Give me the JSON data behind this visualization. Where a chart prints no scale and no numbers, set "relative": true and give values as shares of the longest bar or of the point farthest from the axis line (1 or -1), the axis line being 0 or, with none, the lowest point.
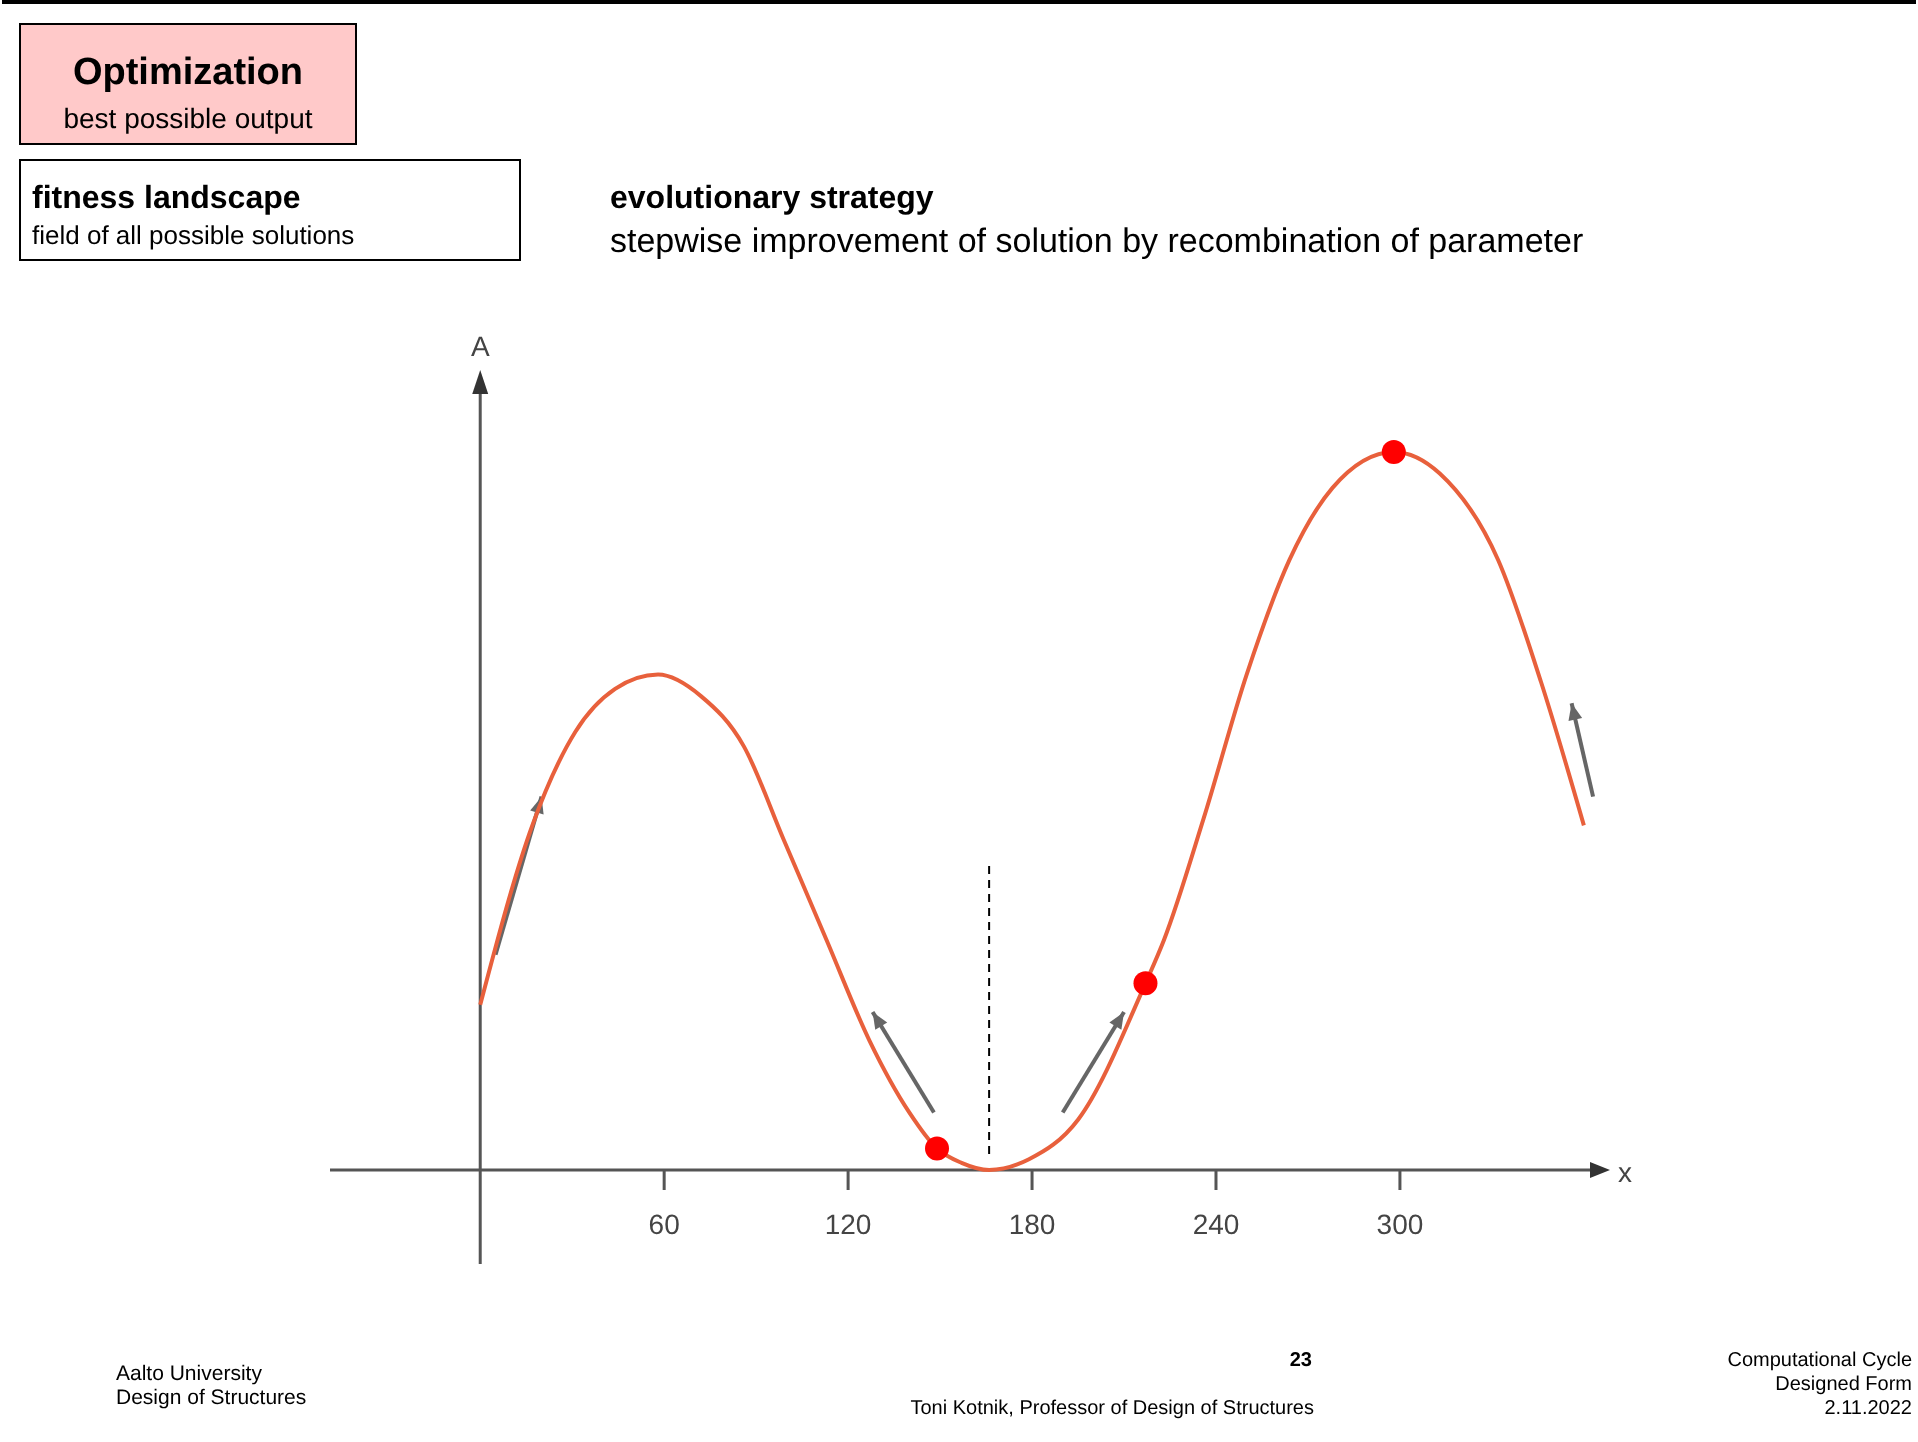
{
  "chart_data": {
    "type": "line",
    "title": "Optimization",
    "subtitle": "best possible output",
    "xlabel": "x",
    "ylabel": "A",
    "relative": true,
    "xlim": [
      -49,
      362
    ],
    "xticks": [
      60,
      120,
      180,
      240,
      300
    ],
    "marker": "none",
    "line_style": "solid",
    "annotations": [
      "fitness landscape",
      "field of all possible solutions",
      "evolutionary strategy",
      "stepwise improvement of solution by recombination of parameter",
      "Aalto University",
      "Design of Structures",
      "23",
      "Toni Kotnik, Professor of Design of Structures",
      "Computational Cycle",
      "Designed Form",
      "2.11.2022"
    ],
    "ref_lines": [
      {
        "axis": "x",
        "value": 166,
        "color": "#000000",
        "line_style": "dashed"
      }
    ],
    "series": [
      {
        "color": "#e8603c",
        "x": [
          0,
          17,
          31,
          44,
          58,
          72,
          86,
          99,
          113,
          127,
          140,
          149,
          157,
          166,
          179,
          195,
          217,
          223,
          236,
          250,
          264,
          278,
          298,
          313,
          332,
          346,
          360
        ],
        "values": [
          0.23,
          0.48,
          0.61,
          0.67,
          0.69,
          0.66,
          0.59,
          0.46,
          0.32,
          0.18,
          0.08,
          0.03,
          0.01,
          0,
          0.015,
          0.07,
          0.26,
          0.32,
          0.49,
          0.69,
          0.85,
          0.95,
          1,
          0.97,
          0.85,
          0.68,
          0.48
        ]
      },
      {
        "type": "scatter",
        "color": "#ff0000",
        "marker": "circle",
        "x": [
          149,
          217,
          298
        ],
        "values": [
          0.03,
          0.26,
          1
        ]
      }
    ]
  }
}
